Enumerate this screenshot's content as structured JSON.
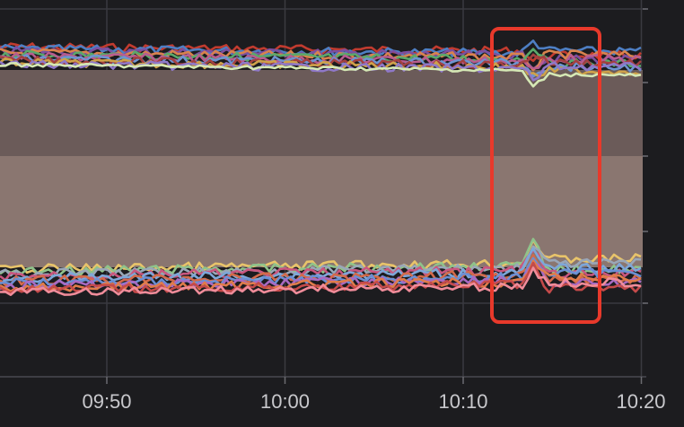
{
  "chart_data": {
    "type": "line",
    "x_tick_labels": [
      "09:50",
      "10:00",
      "10:10",
      "10:20"
    ],
    "xlim_minutes": [
      -6,
      60
    ],
    "x_ticks_minutes": [
      0,
      10,
      20,
      30
    ],
    "bands": [
      {
        "name": "upper",
        "color": "#6b5b59",
        "alpha": 1.0
      },
      {
        "name": "lower",
        "color": "#8a7670",
        "alpha": 1.0
      }
    ],
    "annotation": {
      "type": "highlight-box",
      "color": "#e8392b",
      "around_x_tick": "10:10",
      "spans": "spike"
    },
    "upper_series_colors": [
      "#c23b2f",
      "#4e7fc4",
      "#7b4fa0",
      "#d9834d",
      "#5aa86a",
      "#b85c8f",
      "#6e94d1",
      "#a34040",
      "#cfa24a",
      "#8f78c8",
      "#d5e8b5"
    ],
    "lower_series_colors": [
      "#e8c46a",
      "#8fc38b",
      "#9aa7b8",
      "#c9567f",
      "#7da7d9",
      "#d36a4a",
      "#6b8fd4",
      "#a86ac2",
      "#e07c4a",
      "#c44a4a",
      "#f08c9a"
    ]
  }
}
